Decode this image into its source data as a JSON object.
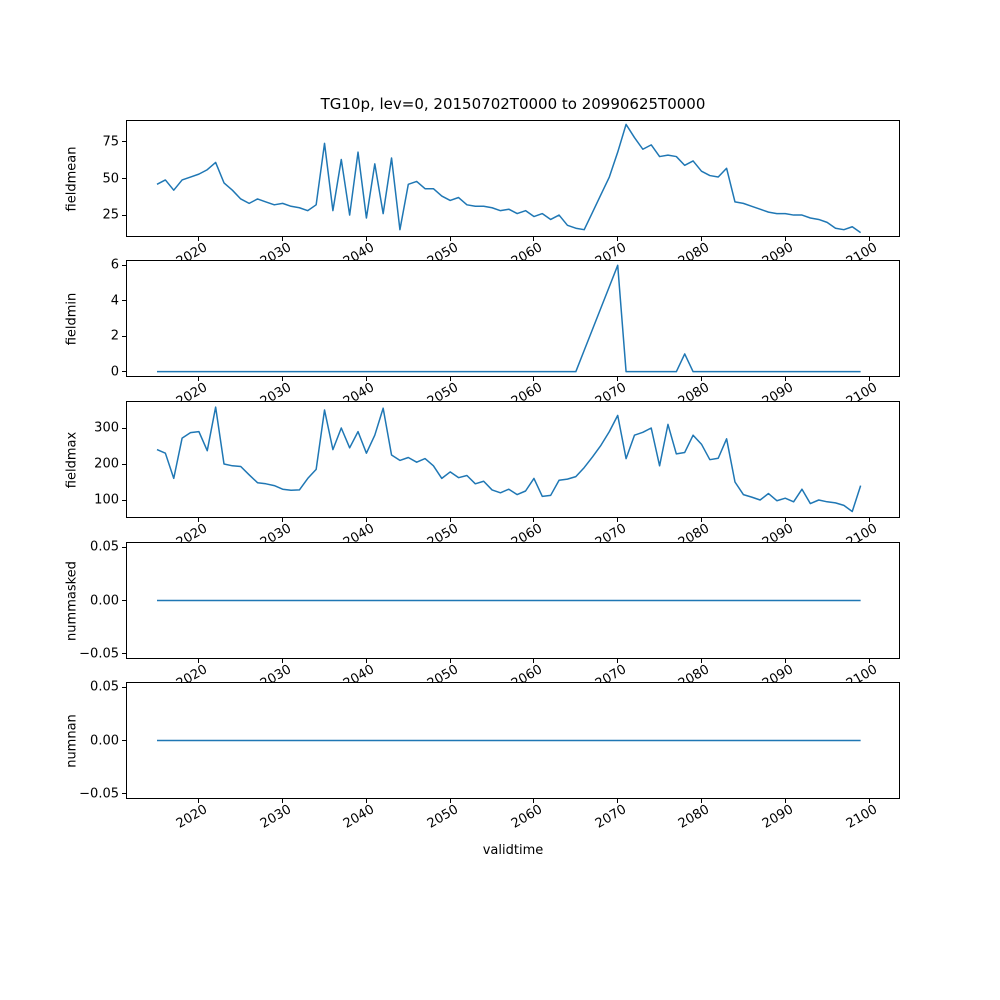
{
  "title": "TG10p, lev=0, 20150702T0000 to 20990625T0000",
  "line_color": "#1f77b4",
  "x_axis": {
    "label": "validtime",
    "lim": [
      2011.3,
      2103.7
    ],
    "ticks": [
      2020,
      2030,
      2040,
      2050,
      2060,
      2070,
      2080,
      2090,
      2100
    ],
    "tick_labels": [
      "2020",
      "2030",
      "2040",
      "2050",
      "2060",
      "2070",
      "2080",
      "2090",
      "2100"
    ]
  },
  "chart_data": [
    {
      "type": "line",
      "name": "fieldmean",
      "ylabel": "fieldmean",
      "ylim": [
        10,
        90
      ],
      "yticks": [
        25,
        50,
        75
      ],
      "ytick_labels": [
        "25",
        "50",
        "75"
      ],
      "x_start": 2015,
      "x_step": 1,
      "values": [
        46,
        49,
        42,
        49,
        51,
        53,
        56,
        61,
        47,
        42,
        36,
        33,
        36,
        34,
        32,
        33,
        31,
        30,
        28,
        32,
        74,
        28,
        63,
        25,
        68,
        23,
        60,
        26,
        64,
        15,
        46,
        48,
        43,
        43,
        38,
        35,
        37,
        32,
        31,
        31,
        30,
        28,
        29,
        26,
        28,
        24,
        26,
        22,
        25,
        18,
        16,
        15,
        27,
        39,
        51,
        68,
        87,
        78,
        70,
        73,
        65,
        66,
        65,
        59,
        62,
        55,
        52,
        51,
        57,
        34,
        33,
        31,
        29,
        27,
        26,
        26,
        25,
        25,
        23,
        22,
        20,
        16,
        15,
        17,
        13
      ]
    },
    {
      "type": "line",
      "name": "fieldmin",
      "ylabel": "fieldmin",
      "ylim": [
        -0.3,
        6.3
      ],
      "yticks": [
        0,
        2,
        4,
        6
      ],
      "ytick_labels": [
        "0",
        "2",
        "4",
        "6"
      ],
      "x_start": 2015,
      "x_step": 1,
      "values": [
        0,
        0,
        0,
        0,
        0,
        0,
        0,
        0,
        0,
        0,
        0,
        0,
        0,
        0,
        0,
        0,
        0,
        0,
        0,
        0,
        0,
        0,
        0,
        0,
        0,
        0,
        0,
        0,
        0,
        0,
        0,
        0,
        0,
        0,
        0,
        0,
        0,
        0,
        0,
        0,
        0,
        0,
        0,
        0,
        0,
        0,
        0,
        0,
        0,
        0,
        0,
        1.2,
        2.4,
        3.6,
        4.8,
        6,
        0,
        0,
        0,
        0,
        0,
        0,
        0,
        1,
        0,
        0,
        0,
        0,
        0,
        0,
        0,
        0,
        0,
        0,
        0,
        0,
        0,
        0,
        0,
        0,
        0,
        0,
        0,
        0,
        0
      ]
    },
    {
      "type": "line",
      "name": "fieldmax",
      "ylabel": "fieldmax",
      "ylim": [
        50,
        375
      ],
      "yticks": [
        100,
        200,
        300
      ],
      "ytick_labels": [
        "100",
        "200",
        "300"
      ],
      "x_start": 2015,
      "x_step": 1,
      "values": [
        240,
        230,
        160,
        272,
        287,
        290,
        237,
        358,
        200,
        195,
        193,
        170,
        148,
        145,
        140,
        130,
        127,
        128,
        160,
        185,
        350,
        240,
        300,
        245,
        290,
        230,
        280,
        355,
        225,
        210,
        218,
        205,
        215,
        195,
        160,
        178,
        162,
        168,
        145,
        152,
        128,
        120,
        130,
        115,
        125,
        160,
        110,
        113,
        155,
        158,
        165,
        190,
        220,
        252,
        290,
        335,
        215,
        280,
        288,
        300,
        195,
        310,
        228,
        232,
        280,
        255,
        212,
        216,
        270,
        150,
        115,
        108,
        100,
        118,
        98,
        105,
        95,
        130,
        90,
        100,
        95,
        92,
        85,
        68,
        140
      ]
    },
    {
      "type": "line",
      "name": "nummasked",
      "ylabel": "nummasked",
      "ylim": [
        -0.055,
        0.055
      ],
      "yticks": [
        -0.05,
        0,
        0.05
      ],
      "ytick_labels": [
        "−0.05",
        "0.00",
        "0.05"
      ],
      "x_start": 2015,
      "x_step": 1,
      "values": [
        0,
        0,
        0,
        0,
        0,
        0,
        0,
        0,
        0,
        0,
        0,
        0,
        0,
        0,
        0,
        0,
        0,
        0,
        0,
        0,
        0,
        0,
        0,
        0,
        0,
        0,
        0,
        0,
        0,
        0,
        0,
        0,
        0,
        0,
        0,
        0,
        0,
        0,
        0,
        0,
        0,
        0,
        0,
        0,
        0,
        0,
        0,
        0,
        0,
        0,
        0,
        0,
        0,
        0,
        0,
        0,
        0,
        0,
        0,
        0,
        0,
        0,
        0,
        0,
        0,
        0,
        0,
        0,
        0,
        0,
        0,
        0,
        0,
        0,
        0,
        0,
        0,
        0,
        0,
        0,
        0,
        0,
        0,
        0,
        0
      ]
    },
    {
      "type": "line",
      "name": "numnan",
      "ylabel": "numnan",
      "ylim": [
        -0.055,
        0.055
      ],
      "yticks": [
        -0.05,
        0,
        0.05
      ],
      "ytick_labels": [
        "−0.05",
        "0.00",
        "0.05"
      ],
      "x_start": 2015,
      "x_step": 1,
      "values": [
        0,
        0,
        0,
        0,
        0,
        0,
        0,
        0,
        0,
        0,
        0,
        0,
        0,
        0,
        0,
        0,
        0,
        0,
        0,
        0,
        0,
        0,
        0,
        0,
        0,
        0,
        0,
        0,
        0,
        0,
        0,
        0,
        0,
        0,
        0,
        0,
        0,
        0,
        0,
        0,
        0,
        0,
        0,
        0,
        0,
        0,
        0,
        0,
        0,
        0,
        0,
        0,
        0,
        0,
        0,
        0,
        0,
        0,
        0,
        0,
        0,
        0,
        0,
        0,
        0,
        0,
        0,
        0,
        0,
        0,
        0,
        0,
        0,
        0,
        0,
        0,
        0,
        0,
        0,
        0,
        0,
        0,
        0,
        0,
        0
      ]
    }
  ]
}
